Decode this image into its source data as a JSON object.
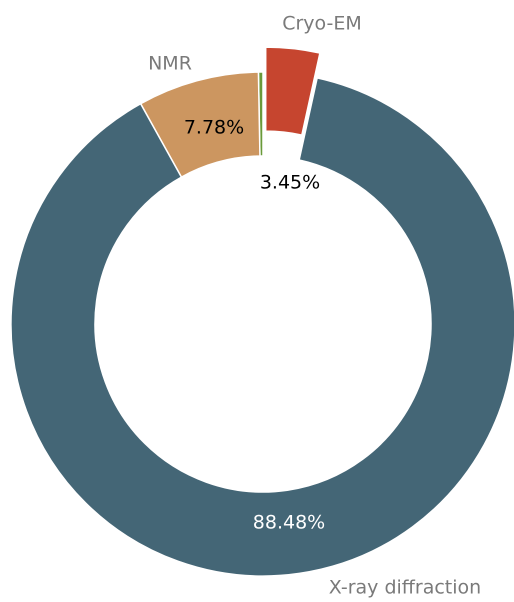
{
  "chart_data": {
    "type": "donut",
    "categories": [
      null,
      "NMR",
      "X-ray diffraction",
      "Cryo-EM"
    ],
    "values": [
      0.29,
      7.78,
      88.48,
      3.45
    ],
    "value_labels": [
      null,
      "7.78%",
      "88.48%",
      "3.45%"
    ],
    "colors": [
      "#6a9a3a",
      "#cc9660",
      "#446676",
      "#c6452f"
    ],
    "explode": [
      false,
      false,
      false,
      true
    ]
  }
}
